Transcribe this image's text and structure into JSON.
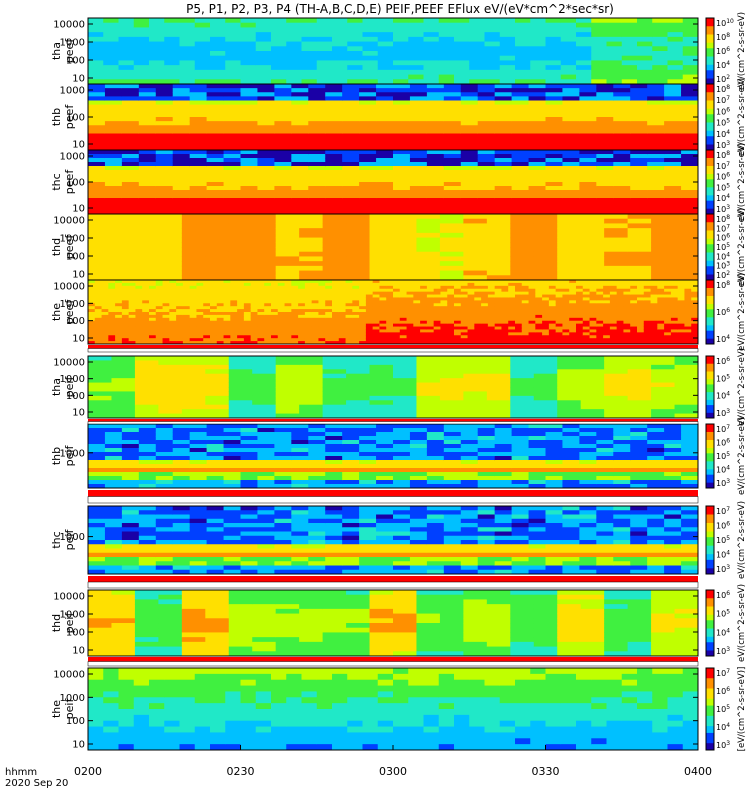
{
  "title": "P5, P1, P2, P3, P4 (TH-A,B,C,D,E) PEIF,PEEF EFlux eV/(eV*cm^2*sec*sr)",
  "footer": {
    "label": "hhmm",
    "date": "2020 Sep 20"
  },
  "chart_data": {
    "type": "heatmap",
    "x_ticks": [
      "0200",
      "0230",
      "0300",
      "0330",
      "0400"
    ],
    "x_range": [
      "02:00",
      "04:00"
    ],
    "colormap": [
      "#1a00a6",
      "#0040ff",
      "#00c0ff",
      "#20e8c8",
      "#40f040",
      "#c0ff00",
      "#ffe000",
      "#ff9000",
      "#ff0000"
    ],
    "panels": [
      {
        "id": "tha_peef",
        "label_top": "tha",
        "label_bottom": "peef",
        "y_ticks": [
          "10000",
          "1000",
          "100",
          "10"
        ],
        "cb_ticks": [
          "10^10",
          "10^8",
          "10^6",
          "10^4",
          "10^2"
        ],
        "cb_unit": "eV/(cm^2-s-sr-eV)"
      },
      {
        "id": "thb_peef",
        "label_top": "thb",
        "label_bottom": "peef",
        "y_ticks": [
          "1000",
          "100",
          "10"
        ],
        "cb_ticks": [
          "10^8",
          "10^7",
          "10^6",
          "10^5",
          "10^4",
          "10^3"
        ],
        "cb_unit": "eV/(cm^2-s-sr-eV)"
      },
      {
        "id": "thc_peef",
        "label_top": "thc",
        "label_bottom": "peef",
        "y_ticks": [
          "1000",
          "100",
          "10"
        ],
        "cb_ticks": [
          "10^8",
          "10^7",
          "10^6",
          "10^5",
          "10^4",
          "10^3"
        ],
        "cb_unit": "eV/(cm^2-s-sr-eV)"
      },
      {
        "id": "thd_peef",
        "label_top": "thd",
        "label_bottom": "peef",
        "y_ticks": [
          "10000",
          "1000",
          "100",
          "10"
        ],
        "cb_ticks": [
          "10^8",
          "10^7",
          "10^6",
          "10^5",
          "10^4",
          "10^3",
          "10^2"
        ],
        "cb_unit": "eV/(cm^2-s-sr-eV)"
      },
      {
        "id": "the_peef",
        "label_top": "the",
        "label_bottom": "peef",
        "y_ticks": [
          "10000",
          "1000",
          "100",
          "10"
        ],
        "cb_ticks": [
          "10^8",
          "10^6",
          "10^4"
        ],
        "cb_unit": "eV/(cm^2-s-sr-eV)"
      },
      {
        "id": "tha_peif",
        "label_top": "tha",
        "label_bottom": "peif",
        "y_ticks": [
          "10000",
          "1000",
          "100",
          "10"
        ],
        "cb_ticks": [
          "10^6",
          "10^5",
          "10^4",
          "10^3"
        ],
        "cb_unit": "eV/(cm^2-s-sr-eV)"
      },
      {
        "id": "thb_peif",
        "label_top": "thb",
        "label_bottom": "peif",
        "y_ticks": [
          "1000"
        ],
        "cb_ticks": [
          "10^7",
          "10^6",
          "10^5",
          "10^4",
          "10^3"
        ],
        "cb_unit": "eV/(cm^2-s-sr-eV)"
      },
      {
        "id": "thc_peif",
        "label_top": "thc",
        "label_bottom": "peif",
        "y_ticks": [
          "1000"
        ],
        "cb_ticks": [
          "10^7",
          "10^6",
          "10^5",
          "10^4",
          "10^3"
        ],
        "cb_unit": "eV/(cm^2-s-sr-eV)"
      },
      {
        "id": "thd_peif",
        "label_top": "thd",
        "label_bottom": "peif",
        "y_ticks": [
          "10000",
          "1000",
          "100",
          "10"
        ],
        "cb_ticks": [
          "10^6",
          "10^5",
          "10^4",
          "10^3"
        ],
        "cb_unit": "eV/(cm^2-s-sr-eV)"
      },
      {
        "id": "the_peif",
        "label_top": "the",
        "label_bottom": "peif",
        "y_ticks": [
          "10000",
          "1000",
          "100",
          "10"
        ],
        "cb_ticks": [
          "10^7",
          "10^6",
          "10^5",
          "10^4",
          "10^3"
        ],
        "cb_unit": "[eV/(cm^2-s-sr-eV)]"
      }
    ]
  }
}
